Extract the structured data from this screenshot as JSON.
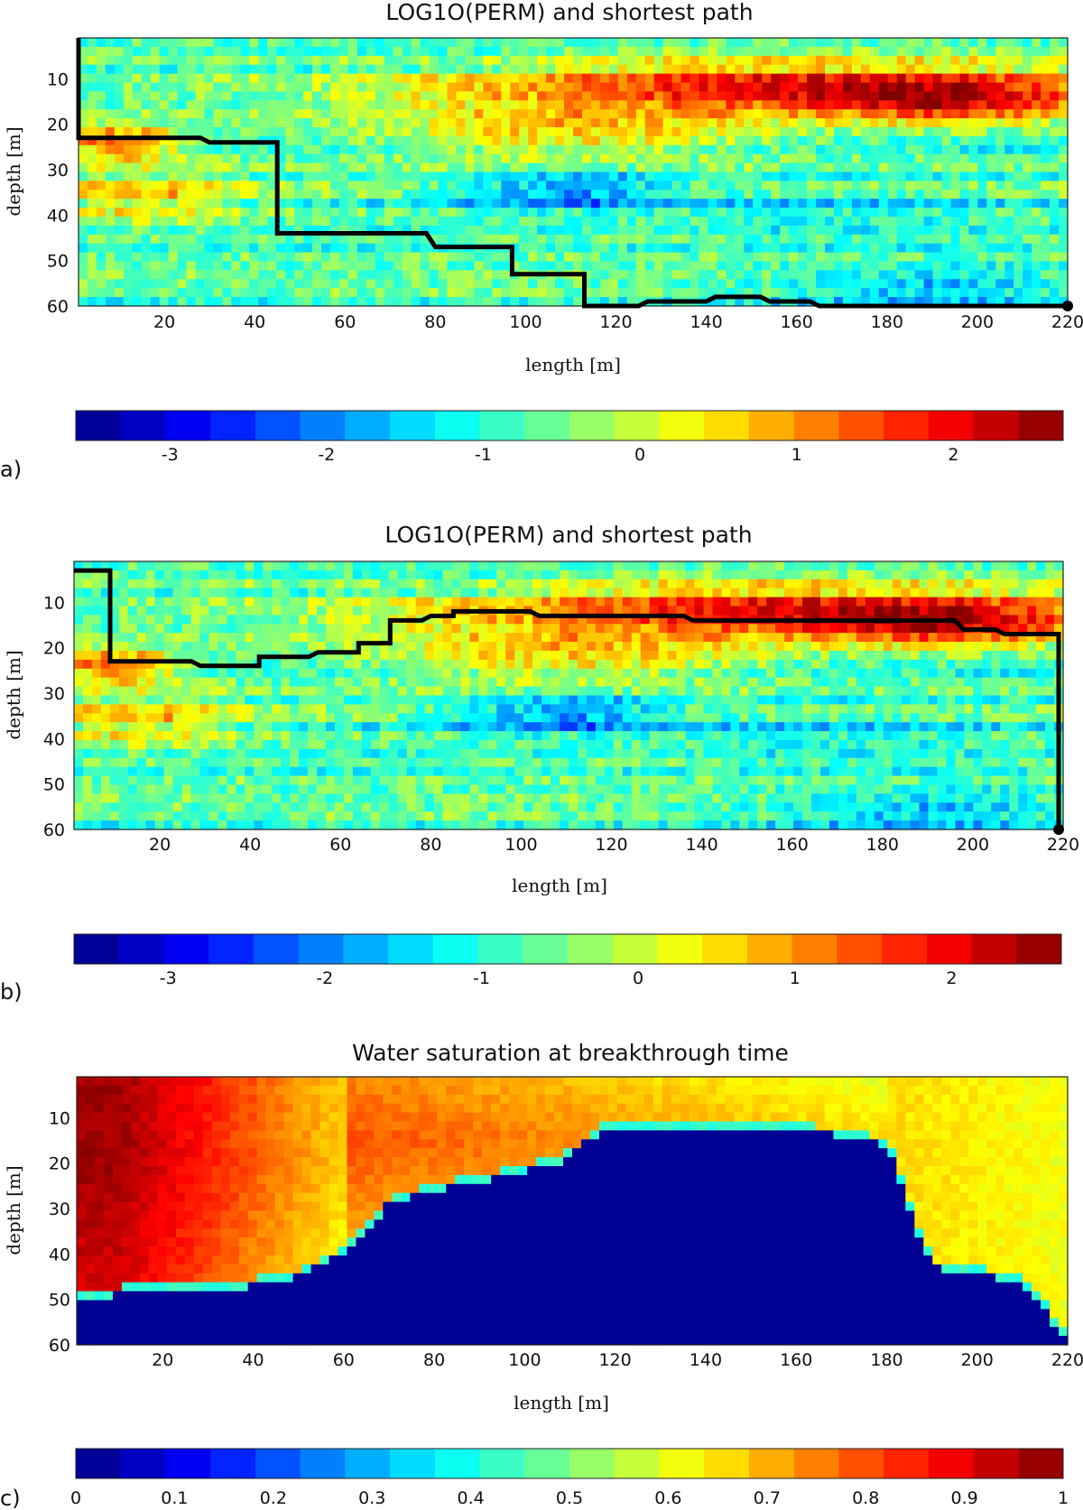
{
  "chart_data": [
    {
      "type": "heatmap",
      "panel_label": "a)",
      "title": "LOG1O(PERM) and shortest path",
      "xlabel": "length [m]",
      "ylabel": "depth [m]",
      "xlim": [
        1,
        220
      ],
      "ylim": [
        1,
        60
      ],
      "y_reversed": true,
      "xticks": [
        "20",
        "40",
        "60",
        "80",
        "100",
        "120",
        "140",
        "160",
        "180",
        "200",
        "220"
      ],
      "yticks": [
        "10",
        "20",
        "30",
        "40",
        "50",
        "60"
      ],
      "colormap": "jet",
      "colorbar": {
        "range": [
          -3.6,
          2.7
        ],
        "ticks": [
          "-3",
          "-2",
          "-1",
          "0",
          "1",
          "2"
        ],
        "placement": "bottom"
      },
      "field": {
        "background": -0.8,
        "features": [
          {
            "x": 155,
            "y": 12,
            "rx": 75,
            "ry": 6,
            "v": 1.6
          },
          {
            "x": 195,
            "y": 15,
            "rx": 30,
            "ry": 5,
            "v": 0.9
          },
          {
            "x": 10,
            "y": 24,
            "rx": 15,
            "ry": 4,
            "v": 1.6
          },
          {
            "x": 15,
            "y": 36,
            "rx": 22,
            "ry": 6,
            "v": 0.5
          },
          {
            "x": 110,
            "y": 35,
            "rx": 25,
            "ry": 4,
            "v": -2.2
          },
          {
            "x": 175,
            "y": 39,
            "rx": 30,
            "ry": 5,
            "v": -1.3
          },
          {
            "x": 190,
            "y": 56,
            "rx": 35,
            "ry": 5,
            "v": -1.8
          },
          {
            "x": 110,
            "y": 22,
            "rx": 45,
            "ry": 6,
            "v": 0.6
          },
          {
            "x": 80,
            "y": 5,
            "rx": 30,
            "ry": 4,
            "v": -1.1
          }
        ]
      },
      "path": {
        "name": "shortest path",
        "x": [
          1,
          1,
          28,
          30,
          45,
          45,
          78,
          80,
          97,
          97,
          113,
          113,
          125,
          127,
          140,
          142,
          152,
          154,
          163,
          165,
          220
        ],
        "y": [
          1,
          23,
          23,
          24,
          24,
          44,
          44,
          47,
          47,
          53,
          53,
          60,
          60,
          59,
          59,
          58,
          58,
          59,
          59,
          60,
          60
        ],
        "end_marker": [
          220,
          60
        ]
      }
    },
    {
      "type": "heatmap",
      "panel_label": "b)",
      "title": "LOG1O(PERM) and shortest path",
      "xlabel": "length [m]",
      "ylabel": "depth [m]",
      "xlim": [
        1,
        220
      ],
      "ylim": [
        1,
        60
      ],
      "y_reversed": true,
      "xticks": [
        "20",
        "40",
        "60",
        "80",
        "100",
        "120",
        "140",
        "160",
        "180",
        "200",
        "220"
      ],
      "yticks": [
        "10",
        "20",
        "30",
        "40",
        "50",
        "60"
      ],
      "colormap": "jet",
      "colorbar": {
        "range": [
          -3.6,
          2.7
        ],
        "ticks": [
          "-3",
          "-2",
          "-1",
          "0",
          "1",
          "2"
        ],
        "placement": "bottom"
      },
      "field": {
        "background": -0.8,
        "features": [
          {
            "x": 155,
            "y": 12,
            "rx": 75,
            "ry": 6,
            "v": 1.6
          },
          {
            "x": 195,
            "y": 15,
            "rx": 30,
            "ry": 5,
            "v": 0.9
          },
          {
            "x": 10,
            "y": 24,
            "rx": 15,
            "ry": 4,
            "v": 1.6
          },
          {
            "x": 15,
            "y": 36,
            "rx": 22,
            "ry": 6,
            "v": 0.5
          },
          {
            "x": 110,
            "y": 35,
            "rx": 25,
            "ry": 4,
            "v": -2.2
          },
          {
            "x": 175,
            "y": 39,
            "rx": 30,
            "ry": 5,
            "v": -1.3
          },
          {
            "x": 190,
            "y": 56,
            "rx": 35,
            "ry": 5,
            "v": -1.8
          },
          {
            "x": 110,
            "y": 22,
            "rx": 45,
            "ry": 6,
            "v": 0.6
          },
          {
            "x": 80,
            "y": 5,
            "rx": 30,
            "ry": 4,
            "v": -1.1
          }
        ]
      },
      "path": {
        "name": "shortest path",
        "x": [
          1,
          9,
          9,
          27,
          29,
          42,
          42,
          53,
          55,
          64,
          64,
          71,
          71,
          78,
          80,
          85,
          85,
          102,
          104,
          136,
          138,
          196,
          198,
          205,
          207,
          219,
          219
        ],
        "y": [
          3,
          3,
          23,
          23,
          24,
          24,
          22,
          22,
          21,
          21,
          19,
          19,
          14,
          14,
          13,
          13,
          12,
          12,
          13,
          13,
          14,
          14,
          16,
          16,
          17,
          17,
          60
        ],
        "end_marker": [
          219,
          60
        ]
      }
    },
    {
      "type": "heatmap",
      "panel_label": "c)",
      "title": "Water saturation at breakthrough time",
      "xlabel": "length [m]",
      "ylabel": "depth [m]",
      "xlim": [
        1,
        220
      ],
      "ylim": [
        1,
        60
      ],
      "y_reversed": true,
      "xticks": [
        "20",
        "40",
        "60",
        "80",
        "100",
        "120",
        "140",
        "160",
        "180",
        "200",
        "220"
      ],
      "yticks": [
        "10",
        "20",
        "30",
        "40",
        "50",
        "60"
      ],
      "colormap": "jet",
      "colorbar": {
        "range": [
          0,
          1
        ],
        "ticks": [
          "0",
          "0.1",
          "0.2",
          "0.3",
          "0.4",
          "0.5",
          "0.6",
          "0.7",
          "0.8",
          "0.9",
          "1"
        ],
        "placement": "bottom"
      },
      "front_depth": {
        "x": [
          1,
          10,
          20,
          30,
          40,
          50,
          60,
          65,
          70,
          80,
          90,
          100,
          110,
          115,
          120,
          130,
          140,
          150,
          160,
          170,
          180,
          185,
          190,
          200,
          210,
          215,
          220
        ],
        "y": [
          50,
          49,
          48,
          48,
          47,
          45,
          40,
          35,
          29,
          26,
          24,
          22,
          19,
          14,
          12,
          12,
          12,
          13,
          13,
          14,
          16,
          30,
          43,
          44,
          47,
          52,
          60
        ]
      }
    }
  ]
}
